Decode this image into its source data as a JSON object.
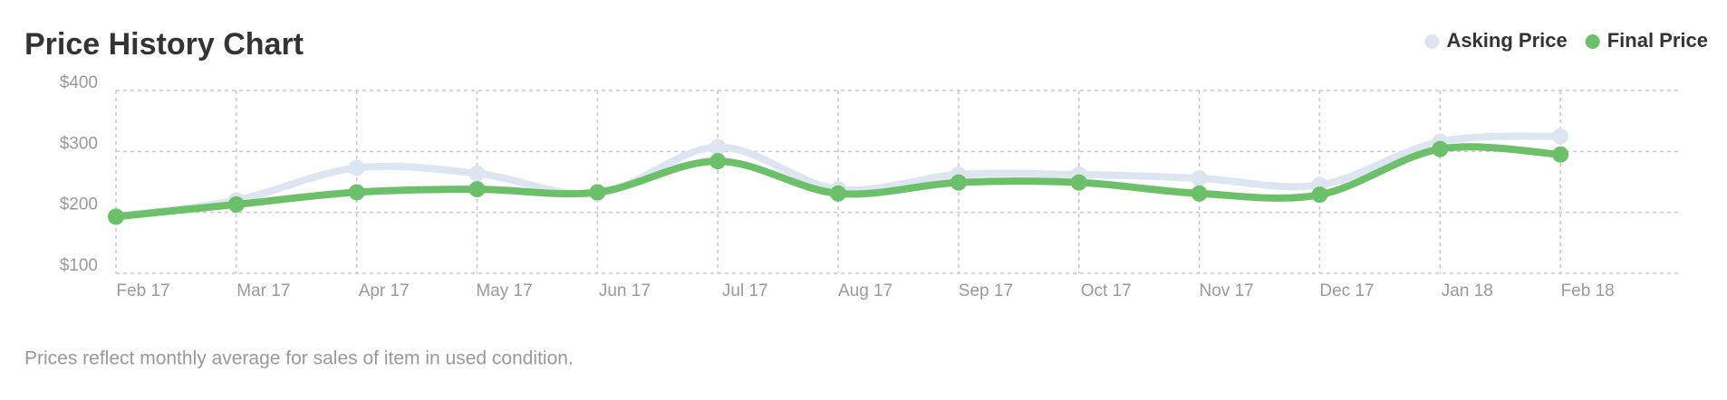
{
  "chart_data": {
    "type": "line",
    "title": "Price History Chart",
    "note": "Prices reflect monthly average for sales of item in used condition.",
    "categories": [
      "Feb 17",
      "Mar 17",
      "Apr 17",
      "May 17",
      "Jun 17",
      "Jul 17",
      "Aug 17",
      "Sep 17",
      "Oct 17",
      "Nov 17",
      "Dec 17",
      "Jan 18",
      "Feb 18"
    ],
    "series": [
      {
        "name": "Asking Price",
        "color": "#dde6f0",
        "values": [
          193,
          220,
          273,
          264,
          231,
          307,
          238,
          262,
          262,
          256,
          245,
          316,
          325
        ]
      },
      {
        "name": "Final Price",
        "color": "#6cc06a",
        "values": [
          193,
          213,
          233,
          238,
          233,
          284,
          231,
          249,
          249,
          231,
          229,
          304,
          295
        ]
      }
    ],
    "ylim": [
      100,
      400
    ],
    "yticks": [
      {
        "value": 100,
        "label": "$100"
      },
      {
        "value": 200,
        "label": "$200"
      },
      {
        "value": 300,
        "label": "$300"
      },
      {
        "value": 400,
        "label": "$400"
      }
    ],
    "grid": true,
    "legend": "top-right"
  }
}
